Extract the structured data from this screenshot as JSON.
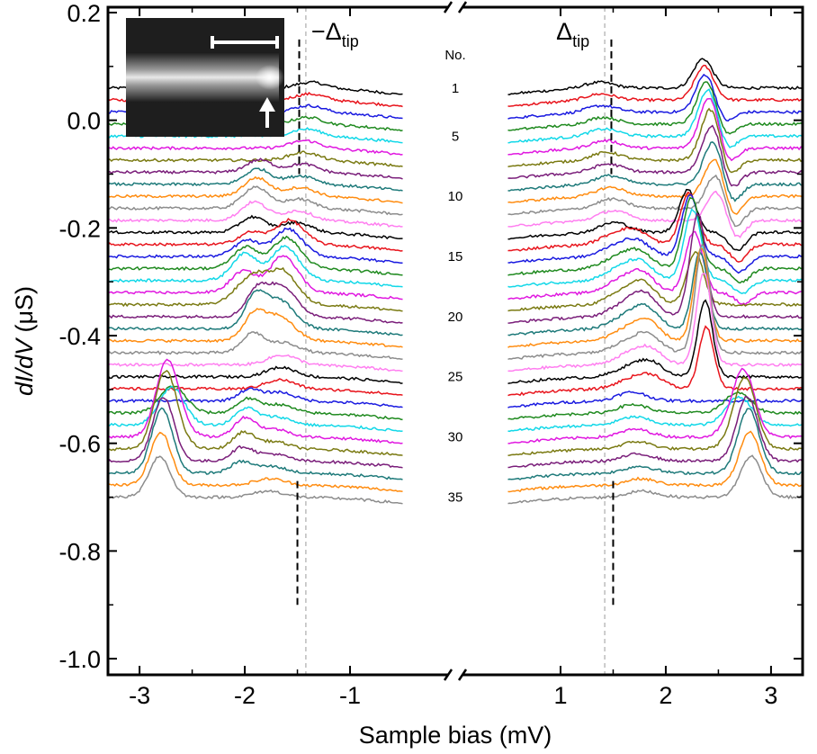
{
  "chart_data": {
    "type": "line",
    "title": "",
    "xlabel": "Sample bias (mV)",
    "ylabel_italic": "dI/dV",
    "ylabel_unit": " (μS)",
    "xlim": [
      -3.3,
      3.3
    ],
    "ylim": [
      -1.03,
      0.21
    ],
    "x_ticks": [
      -3,
      -2,
      -1,
      1,
      2,
      3
    ],
    "x_tick_labels": [
      "-3",
      "-2",
      "-1",
      "1",
      "2",
      "3"
    ],
    "y_ticks": [
      0.2,
      0.0,
      -0.2,
      -0.4,
      -0.6,
      -0.8,
      -1.0
    ],
    "y_tick_labels": [
      "0.2",
      "0.0",
      "-0.2",
      "-0.4",
      "-0.6",
      "-0.8",
      "-1.0"
    ],
    "axis_break_at": 0,
    "gap_range_mV": [
      -0.5,
      0.5
    ],
    "grid": false,
    "reference_lines": {
      "x": [
        -1.42,
        1.42
      ],
      "labels": [
        "−Δ",
        "Δ"
      ],
      "subscript": "tip",
      "style": "dashed grey"
    },
    "column_header": "No.",
    "curve_number_labels": [
      "1",
      "5",
      "10",
      "15",
      "20",
      "25",
      "30",
      "35"
    ],
    "curve_number_indices": [
      1,
      5,
      10,
      15,
      20,
      25,
      30,
      35
    ],
    "num_curves": 35,
    "first_offset": 0.06,
    "offset_step": -0.02235,
    "series_colors": [
      "#000000",
      "#e8141c",
      "#1a1ae0",
      "#1f8a1f",
      "#12d8e8",
      "#e018e0",
      "#7a7a12",
      "#7a1e7a",
      "#1e7a7a",
      "#ff8c10",
      "#8c8c8c",
      "#ff7ff0"
    ],
    "coherence_peak_marker_mV": [
      -1.5,
      1.5
    ],
    "inset": {
      "description": "STM topograph with scale bar and arrow",
      "has_scale_bar": true,
      "has_arrow": true
    },
    "series_features_note": "Each curve: flat gap between ±0.5 mV, coherence peaks near ±1.5 mV, sub-gap resonances (±1.6–2.5 mV) that shift with curve number, large peaks near +2.4 mV for middle curves and ±2.75 mV for the last curves.",
    "features": [
      {
        "center": 1.57,
        "amp": 0.022,
        "width": 0.14,
        "from": 1,
        "to": 35
      },
      {
        "center": -1.57,
        "amp": 0.022,
        "width": 0.14,
        "from": 1,
        "to": 35
      },
      {
        "center": 2.42,
        "amp": 0.1,
        "width": 0.09,
        "from": 1,
        "to": 12
      },
      {
        "center": 2.25,
        "amp": 0.14,
        "width": 0.08,
        "from": 13,
        "to": 20
      },
      {
        "center": 2.35,
        "amp": 0.2,
        "width": 0.07,
        "from": 20,
        "to": 26
      },
      {
        "center": 2.65,
        "amp": -0.04,
        "width": 0.08,
        "from": 3,
        "to": 18
      },
      {
        "center": -1.9,
        "amp": 0.04,
        "width": 0.12,
        "from": 8,
        "to": 14
      },
      {
        "center": -1.65,
        "amp": 0.05,
        "width": 0.12,
        "from": 14,
        "to": 22
      },
      {
        "center": -1.9,
        "amp": 0.06,
        "width": 0.1,
        "from": 19,
        "to": 23
      },
      {
        "center": -2.0,
        "amp": 0.05,
        "width": 0.12,
        "from": 15,
        "to": 19
      },
      {
        "center": -2.0,
        "amp": 0.035,
        "width": 0.1,
        "from": 27,
        "to": 33
      },
      {
        "center": 1.8,
        "amp": 0.04,
        "width": 0.12,
        "from": 14,
        "to": 26
      },
      {
        "center": -2.78,
        "amp": 0.13,
        "width": 0.1,
        "from": 30,
        "to": 35
      },
      {
        "center": 2.78,
        "amp": 0.13,
        "width": 0.1,
        "from": 30,
        "to": 35
      },
      {
        "center": -2.7,
        "amp": 0.08,
        "width": 0.12,
        "from": 28,
        "to": 31
      },
      {
        "center": 2.7,
        "amp": 0.06,
        "width": 0.12,
        "from": 28,
        "to": 31
      }
    ]
  }
}
